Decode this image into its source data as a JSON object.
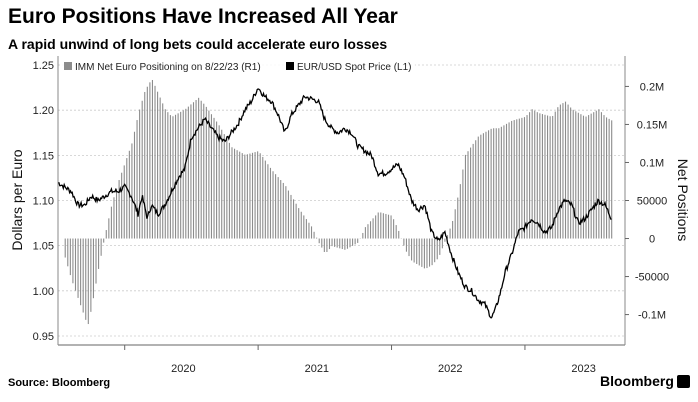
{
  "title": "Euro Positions Have Increased All Year",
  "subtitle": "A rapid unwind of long bets could accelerate euro losses",
  "source": "Source: Bloomberg",
  "brand": "Bloomberg",
  "chart_data": {
    "type": "line",
    "ylabel_left": "Dollars per Euro",
    "ylabel_right": "Net Positions",
    "ylim_left": [
      0.94,
      1.26
    ],
    "ylim_right": [
      -140000,
      240000
    ],
    "yticks_left": [
      "1.25",
      "1.20",
      "1.15",
      "1.10",
      "1.05",
      "1.00",
      "0.95"
    ],
    "yticks_right": [
      "0.2M",
      "0.15M",
      "0.1M",
      "50000",
      "0",
      "-50000",
      "-0.1M"
    ],
    "xticks": [
      "2020",
      "2021",
      "2022",
      "2023"
    ],
    "grid": true,
    "legend_position": "top",
    "series": [
      {
        "name": "IMM Net Euro Positioning  on 8/22/23 (R1)",
        "type": "bar",
        "color": "#8c8c8c",
        "points": [
          [
            2019.55,
            -25000
          ],
          [
            2019.6,
            -55000
          ],
          [
            2019.65,
            -80000
          ],
          [
            2019.7,
            -105000
          ],
          [
            2019.72,
            -115000
          ],
          [
            2019.75,
            -90000
          ],
          [
            2019.8,
            -40000
          ],
          [
            2019.85,
            5000
          ],
          [
            2019.9,
            45000
          ],
          [
            2019.95,
            75000
          ],
          [
            2020.0,
            100000
          ],
          [
            2020.05,
            125000
          ],
          [
            2020.1,
            165000
          ],
          [
            2020.15,
            195000
          ],
          [
            2020.2,
            210000
          ],
          [
            2020.25,
            190000
          ],
          [
            2020.3,
            170000
          ],
          [
            2020.35,
            160000
          ],
          [
            2020.45,
            170000
          ],
          [
            2020.55,
            185000
          ],
          [
            2020.6,
            175000
          ],
          [
            2020.7,
            150000
          ],
          [
            2020.8,
            120000
          ],
          [
            2020.9,
            110000
          ],
          [
            2021.0,
            115000
          ],
          [
            2021.1,
            90000
          ],
          [
            2021.2,
            70000
          ],
          [
            2021.3,
            40000
          ],
          [
            2021.4,
            15000
          ],
          [
            2021.45,
            -5000
          ],
          [
            2021.5,
            -20000
          ],
          [
            2021.55,
            -10000
          ],
          [
            2021.65,
            -15000
          ],
          [
            2021.75,
            -5000
          ],
          [
            2021.8,
            15000
          ],
          [
            2021.9,
            35000
          ],
          [
            2022.0,
            30000
          ],
          [
            2022.05,
            10000
          ],
          [
            2022.1,
            -15000
          ],
          [
            2022.15,
            -30000
          ],
          [
            2022.25,
            -40000
          ],
          [
            2022.3,
            -35000
          ],
          [
            2022.35,
            -25000
          ],
          [
            2022.45,
            20000
          ],
          [
            2022.5,
            60000
          ],
          [
            2022.55,
            110000
          ],
          [
            2022.65,
            135000
          ],
          [
            2022.75,
            145000
          ],
          [
            2022.8,
            145000
          ],
          [
            2022.85,
            150000
          ],
          [
            2022.9,
            155000
          ],
          [
            2023.0,
            160000
          ],
          [
            2023.05,
            170000
          ],
          [
            2023.1,
            165000
          ],
          [
            2023.2,
            160000
          ],
          [
            2023.25,
            175000
          ],
          [
            2023.3,
            180000
          ],
          [
            2023.35,
            170000
          ],
          [
            2023.45,
            160000
          ],
          [
            2023.55,
            170000
          ],
          [
            2023.6,
            160000
          ],
          [
            2023.65,
            155000
          ]
        ]
      },
      {
        "name": "EUR/USD Spot Price (L1)",
        "type": "line",
        "color": "#000000",
        "points": [
          [
            2019.5,
            1.12
          ],
          [
            2019.55,
            1.115
          ],
          [
            2019.6,
            1.11
          ],
          [
            2019.65,
            1.095
          ],
          [
            2019.7,
            1.095
          ],
          [
            2019.75,
            1.105
          ],
          [
            2019.8,
            1.1
          ],
          [
            2019.85,
            1.105
          ],
          [
            2019.9,
            1.11
          ],
          [
            2019.95,
            1.11
          ],
          [
            2020.0,
            1.115
          ],
          [
            2020.05,
            1.105
          ],
          [
            2020.1,
            1.085
          ],
          [
            2020.13,
            1.105
          ],
          [
            2020.17,
            1.08
          ],
          [
            2020.2,
            1.095
          ],
          [
            2020.25,
            1.085
          ],
          [
            2020.3,
            1.095
          ],
          [
            2020.35,
            1.11
          ],
          [
            2020.4,
            1.125
          ],
          [
            2020.45,
            1.135
          ],
          [
            2020.5,
            1.17
          ],
          [
            2020.55,
            1.18
          ],
          [
            2020.6,
            1.19
          ],
          [
            2020.65,
            1.18
          ],
          [
            2020.7,
            1.17
          ],
          [
            2020.75,
            1.165
          ],
          [
            2020.8,
            1.175
          ],
          [
            2020.85,
            1.185
          ],
          [
            2020.9,
            1.2
          ],
          [
            2020.95,
            1.21
          ],
          [
            2021.0,
            1.225
          ],
          [
            2021.05,
            1.215
          ],
          [
            2021.1,
            1.21
          ],
          [
            2021.15,
            1.195
          ],
          [
            2021.2,
            1.175
          ],
          [
            2021.25,
            1.195
          ],
          [
            2021.3,
            1.205
          ],
          [
            2021.35,
            1.215
          ],
          [
            2021.45,
            1.21
          ],
          [
            2021.5,
            1.19
          ],
          [
            2021.55,
            1.18
          ],
          [
            2021.6,
            1.175
          ],
          [
            2021.65,
            1.18
          ],
          [
            2021.7,
            1.175
          ],
          [
            2021.75,
            1.16
          ],
          [
            2021.8,
            1.155
          ],
          [
            2021.85,
            1.15
          ],
          [
            2021.9,
            1.13
          ],
          [
            2021.95,
            1.13
          ],
          [
            2022.0,
            1.135
          ],
          [
            2022.05,
            1.14
          ],
          [
            2022.1,
            1.125
          ],
          [
            2022.15,
            1.1
          ],
          [
            2022.2,
            1.09
          ],
          [
            2022.25,
            1.095
          ],
          [
            2022.3,
            1.065
          ],
          [
            2022.35,
            1.055
          ],
          [
            2022.4,
            1.065
          ],
          [
            2022.45,
            1.04
          ],
          [
            2022.5,
            1.02
          ],
          [
            2022.55,
            1.005
          ],
          [
            2022.6,
            1.0
          ],
          [
            2022.65,
            0.99
          ],
          [
            2022.7,
            0.985
          ],
          [
            2022.75,
            0.97
          ],
          [
            2022.78,
            0.98
          ],
          [
            2022.82,
            1.0
          ],
          [
            2022.85,
            1.02
          ],
          [
            2022.9,
            1.04
          ],
          [
            2022.95,
            1.065
          ],
          [
            2023.0,
            1.07
          ],
          [
            2023.05,
            1.08
          ],
          [
            2023.1,
            1.075
          ],
          [
            2023.15,
            1.065
          ],
          [
            2023.2,
            1.07
          ],
          [
            2023.25,
            1.09
          ],
          [
            2023.3,
            1.1
          ],
          [
            2023.35,
            1.095
          ],
          [
            2023.4,
            1.075
          ],
          [
            2023.45,
            1.08
          ],
          [
            2023.5,
            1.09
          ],
          [
            2023.55,
            1.1
          ],
          [
            2023.6,
            1.095
          ],
          [
            2023.65,
            1.08
          ]
        ]
      }
    ]
  }
}
